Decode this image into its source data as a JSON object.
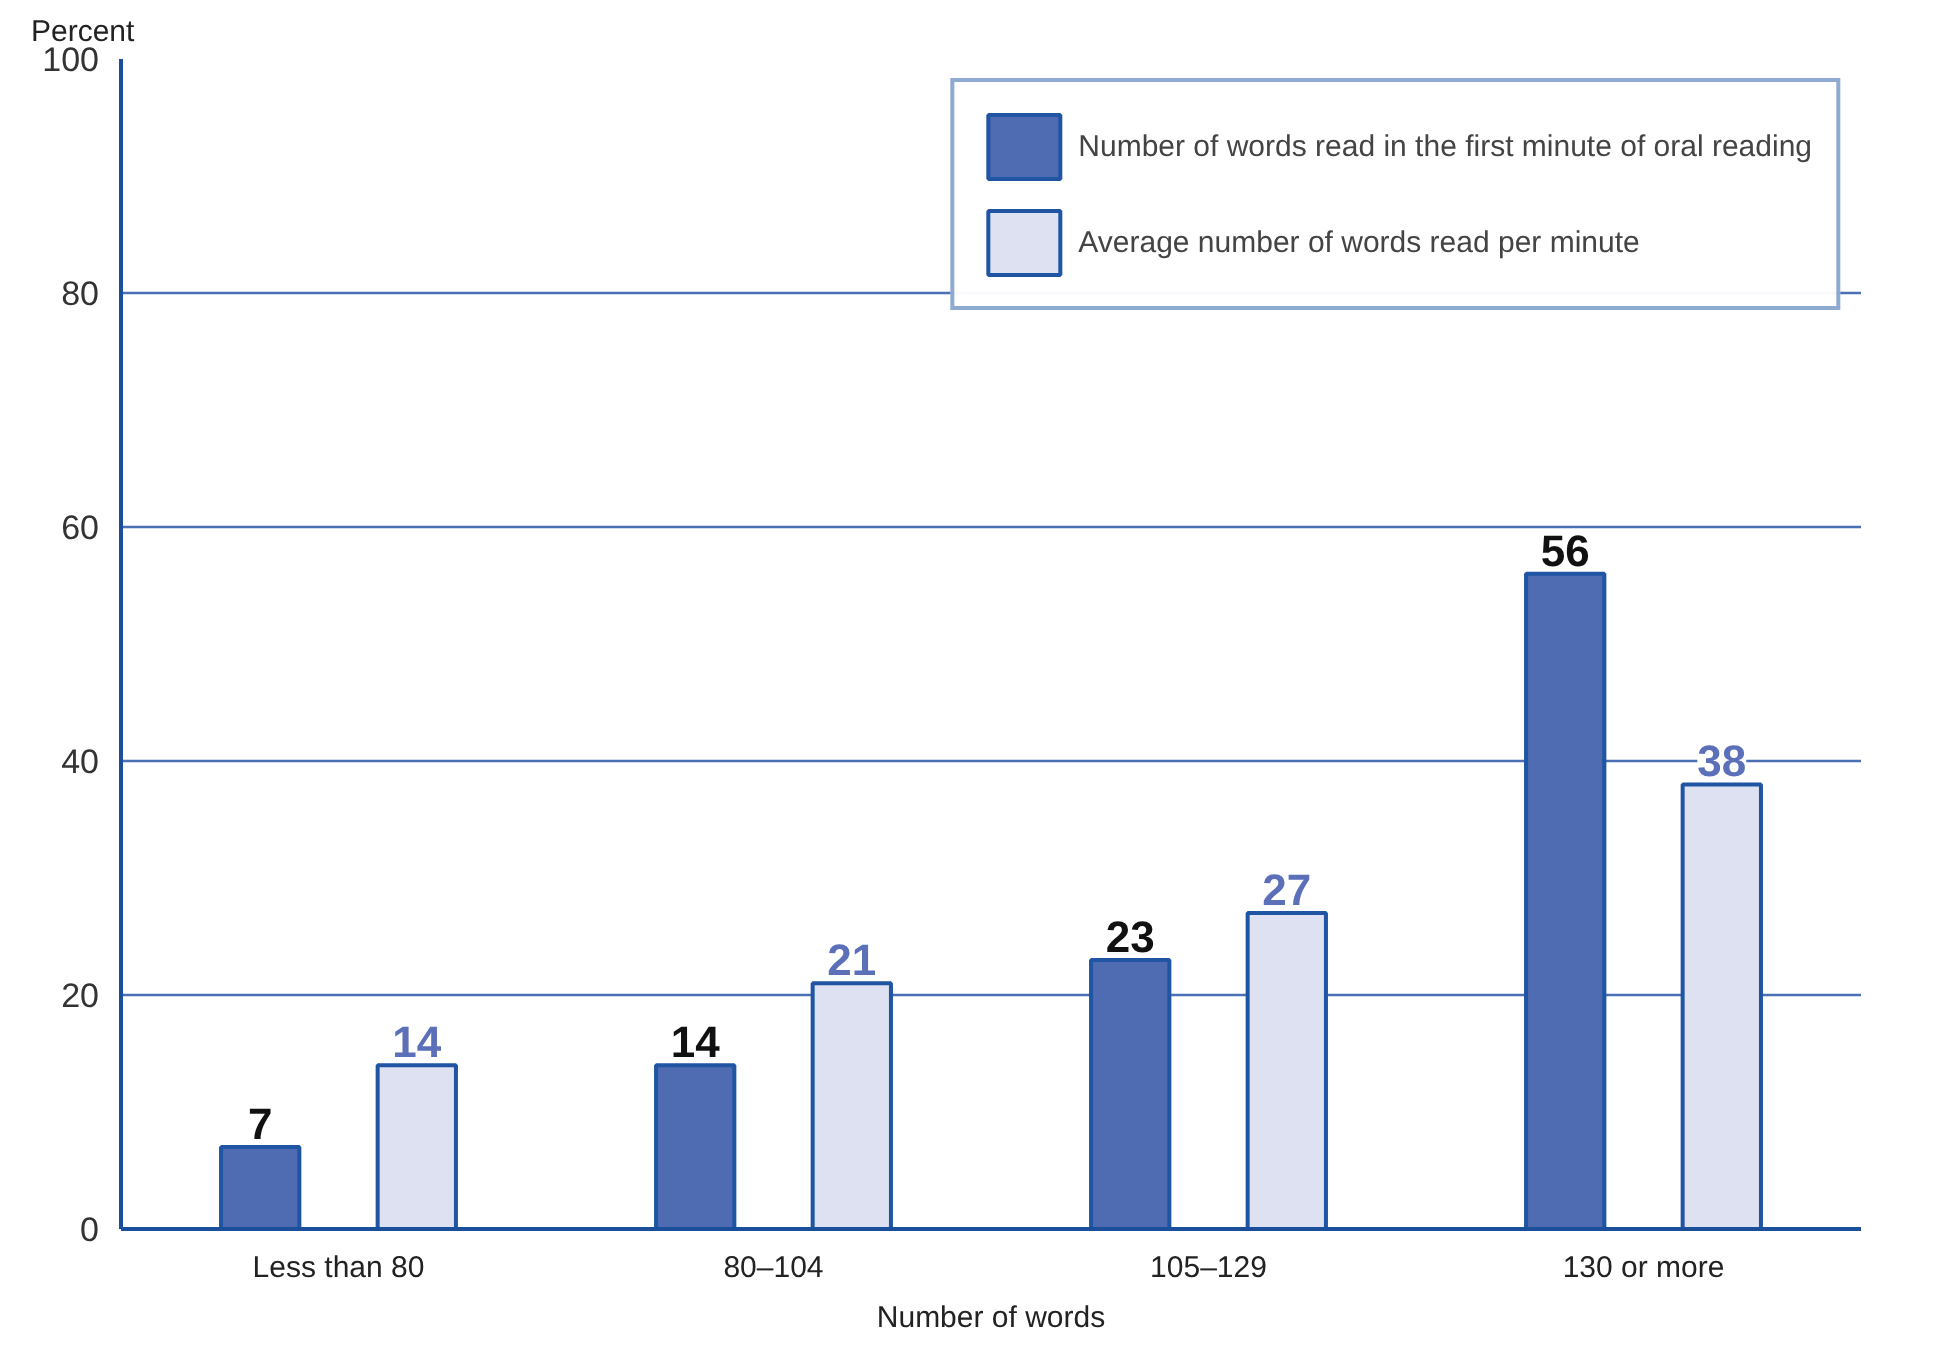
{
  "chart_data": {
    "type": "bar",
    "ylabel": "Percent",
    "xlabel": "Number of words",
    "categories": [
      "Less than 80",
      "80–104",
      "105–129",
      "130 or more"
    ],
    "series": [
      {
        "name": "Number of words read in the first minute of oral reading",
        "color": "#4f6cb2",
        "values": [
          7,
          14,
          23,
          56
        ]
      },
      {
        "name": "Average number of words read per minute",
        "color": "#dde1f1",
        "values": [
          14,
          21,
          27,
          38
        ]
      }
    ],
    "ylim": [
      0,
      100
    ],
    "yticks": [
      0,
      20,
      40,
      60,
      80,
      100
    ],
    "grid": "y",
    "legend": "top right",
    "data_labels": true
  }
}
